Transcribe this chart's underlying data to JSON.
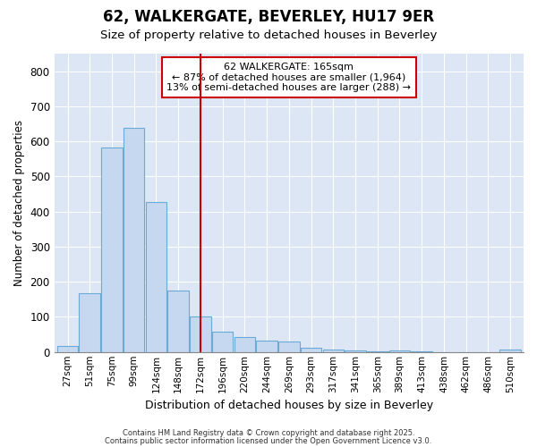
{
  "title": "62, WALKERGATE, BEVERLEY, HU17 9ER",
  "subtitle": "Size of property relative to detached houses in Beverley",
  "xlabel": "Distribution of detached houses by size in Beverley",
  "ylabel": "Number of detached properties",
  "bar_color": "#c5d8f0",
  "bar_edgecolor": "#6aaad4",
  "plot_background_color": "#dce6f5",
  "figure_background_color": "#ffffff",
  "grid_color": "#ffffff",
  "categories": [
    "27sqm",
    "51sqm",
    "75sqm",
    "99sqm",
    "124sqm",
    "148sqm",
    "172sqm",
    "196sqm",
    "220sqm",
    "244sqm",
    "269sqm",
    "293sqm",
    "317sqm",
    "341sqm",
    "365sqm",
    "389sqm",
    "413sqm",
    "438sqm",
    "462sqm",
    "486sqm",
    "510sqm"
  ],
  "values": [
    18,
    168,
    582,
    638,
    428,
    175,
    102,
    57,
    42,
    32,
    29,
    11,
    7,
    5,
    1,
    5,
    1,
    0,
    0,
    0,
    6
  ],
  "vline_position": 6.0,
  "vline_color": "#cc0000",
  "annotation_text": "62 WALKERGATE: 165sqm\n← 87% of detached houses are smaller (1,964)\n13% of semi-detached houses are larger (288) →",
  "annotation_box_edgecolor": "#cc0000",
  "annotation_box_facecolor": "#ffffff",
  "ylim": [
    0,
    850
  ],
  "yticks": [
    0,
    100,
    200,
    300,
    400,
    500,
    600,
    700,
    800
  ],
  "footer1": "Contains HM Land Registry data © Crown copyright and database right 2025.",
  "footer2": "Contains public sector information licensed under the Open Government Licence v3.0."
}
